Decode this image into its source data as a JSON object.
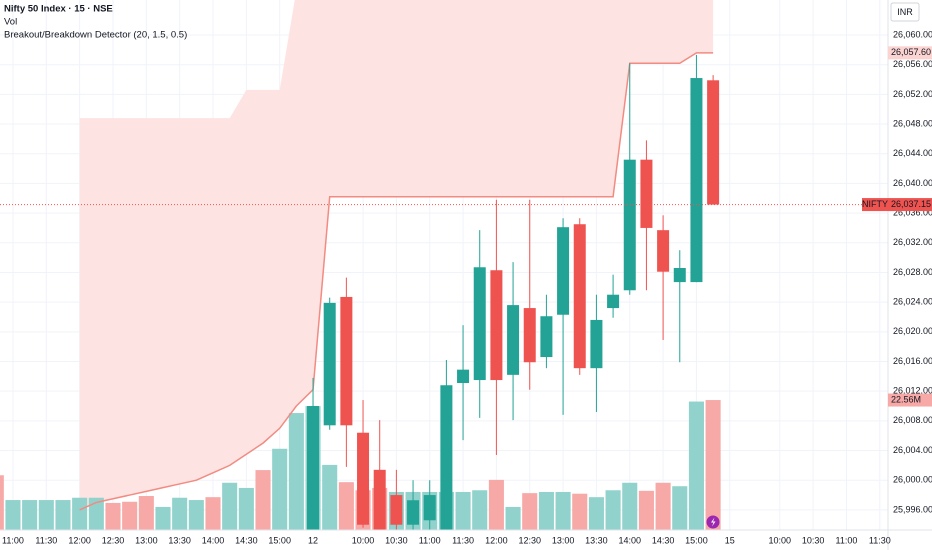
{
  "chart_data": {
    "type": "candlestick",
    "title": "Nifty 50 Index · 15 · NSE",
    "indicators": [
      "Vol",
      "Breakout/Breakdown Detector (20, 1.5, 0.5)"
    ],
    "currency": "INR",
    "categories": [
      null,
      "11:00",
      null,
      "11:30",
      null,
      "12:00",
      null,
      "12:30",
      null,
      "13:00",
      null,
      "13:30",
      null,
      "14:00",
      null,
      "14:30",
      null,
      "15:00",
      null,
      "12",
      null,
      null,
      "10:00",
      null,
      "10:30",
      null,
      "11:00",
      null,
      "11:30",
      null,
      "12:00",
      null,
      "12:30",
      null,
      "13:00",
      null,
      "13:30",
      null,
      "14:00",
      null,
      "14:30",
      null,
      "15:00",
      null,
      "15",
      null,
      null,
      "10:00",
      null,
      "10:30",
      null,
      "11:00",
      null,
      "11:30"
    ],
    "open": [
      null,
      null,
      null,
      null,
      null,
      null,
      null,
      null,
      null,
      null,
      null,
      null,
      null,
      null,
      null,
      null,
      null,
      null,
      null,
      25993.3,
      26007.4,
      26024.7,
      26006.4,
      26001.4,
      25998.0,
      25994.0,
      25994.6,
      25993.3,
      26013.1,
      26013.5,
      26028.3,
      26014.2,
      26023.2,
      26016.6,
      26022.3,
      26034.5,
      26015.1,
      26023.2,
      26025.6,
      26043.2,
      26033.7,
      26026.7,
      26026.7,
      26053.9,
      null,
      null,
      null,
      null,
      null,
      null,
      null,
      null,
      null,
      null
    ],
    "high": [
      null,
      null,
      null,
      null,
      null,
      null,
      null,
      null,
      null,
      null,
      null,
      null,
      null,
      null,
      null,
      null,
      null,
      null,
      null,
      26013.8,
      26024.6,
      26027.3,
      26010.8,
      26008.1,
      26001.4,
      26000.0,
      26000.0,
      26016.2,
      26020.9,
      26033.7,
      26037.8,
      26029.4,
      26037.8,
      26025.0,
      26035.3,
      26035.3,
      26025.0,
      26027.7,
      26056.2,
      26045.8,
      26035.7,
      26031.0,
      26057.3,
      26054.6,
      null,
      null,
      null,
      null,
      null,
      null,
      null,
      null,
      null,
      null
    ],
    "low": [
      null,
      null,
      null,
      null,
      null,
      null,
      null,
      null,
      null,
      null,
      null,
      null,
      null,
      null,
      null,
      null,
      null,
      null,
      null,
      25993.3,
      26006.8,
      26001.8,
      25993.6,
      25992.6,
      25993.3,
      25993.3,
      25993.3,
      25993.3,
      26005.4,
      26008.4,
      26003.4,
      26008.1,
      26012.2,
      26015.1,
      26008.8,
      26014.2,
      26009.2,
      26021.9,
      26025.0,
      26025.6,
      26018.9,
      26015.9,
      26026.7,
      26037.15,
      null,
      null,
      null,
      null,
      null,
      null,
      null,
      null,
      null,
      null
    ],
    "close": [
      null,
      null,
      null,
      null,
      null,
      null,
      null,
      null,
      null,
      null,
      null,
      null,
      null,
      null,
      null,
      null,
      null,
      null,
      null,
      26010.0,
      26023.9,
      26007.4,
      25994.0,
      25993.3,
      25994.0,
      25997.3,
      25998.0,
      26012.8,
      26014.9,
      26028.7,
      26013.5,
      26023.6,
      26015.9,
      26022.1,
      26034.1,
      26015.1,
      26021.6,
      26025.0,
      26043.2,
      26034.0,
      26028.1,
      26028.6,
      26054.2,
      26037.15,
      null,
      null,
      null,
      null,
      null,
      null,
      null,
      null,
      null,
      null
    ],
    "up_color": "#22a395",
    "down_color": "#ef5350",
    "volume": {
      "values": [
        9.5,
        5.2,
        5.2,
        5.2,
        5.2,
        5.6,
        5.6,
        4.7,
        4.9,
        5.9,
        4.0,
        5.6,
        5.2,
        5.7,
        8.2,
        7.3,
        10.4,
        14.1,
        20.3,
        21.5,
        11.3,
        8.3,
        6.9,
        7.3,
        6.6,
        6.6,
        6.6,
        6.6,
        6.6,
        6.9,
        8.7,
        4.0,
        6.4,
        6.6,
        6.6,
        6.3,
        5.7,
        6.9,
        8.2,
        6.8,
        8.2,
        7.6,
        22.3,
        22.56,
        null,
        null,
        null,
        null,
        null,
        null,
        null,
        null,
        null,
        null
      ],
      "colors": [
        "#f7a9a7",
        "#92d2cc",
        "#92d2cc",
        "#92d2cc",
        "#92d2cc",
        "#92d2cc",
        "#92d2cc",
        "#f7a9a7",
        "#f7a9a7",
        "#f7a9a7",
        "#92d2cc",
        "#92d2cc",
        "#92d2cc",
        "#f7a9a7",
        "#92d2cc",
        "#92d2cc",
        "#f7a9a7",
        "#92d2cc",
        "#92d2cc",
        "#92d2cc",
        "#92d2cc",
        "#f7a9a7",
        "#f7a9a7",
        "#f7a9a7",
        "#92d2cc",
        "#92d2cc",
        "#92d2cc",
        "#92d2cc",
        "#92d2cc",
        "#92d2cc",
        "#f7a9a7",
        "#92d2cc",
        "#f7a9a7",
        "#92d2cc",
        "#92d2cc",
        "#f7a9a7",
        "#92d2cc",
        "#92d2cc",
        "#92d2cc",
        "#f7a9a7",
        "#f7a9a7",
        "#92d2cc",
        "#92d2cc",
        "#f7a9a7",
        null,
        null,
        null,
        null,
        null,
        null,
        null,
        null,
        null,
        null
      ],
      "lim": [
        0,
        92
      ]
    },
    "level": {
      "color": "#f28b82",
      "values": [
        null,
        null,
        null,
        null,
        null,
        25996,
        25997,
        25997.5,
        25998,
        25998.5,
        25999,
        25999.5,
        26000,
        26001,
        26002,
        26003.5,
        26005,
        26007,
        26010,
        26012.2,
        26038.2,
        26038.2,
        26038.2,
        26038.2,
        26038.2,
        26038.2,
        26038.2,
        26038.2,
        26038.2,
        26038.2,
        26038.2,
        26038.2,
        26038.2,
        26038.2,
        26038.2,
        26038.2,
        26038.2,
        26038.2,
        26056.2,
        26056.2,
        26056.2,
        26056.2,
        26057.6,
        26057.6,
        null,
        null,
        null,
        null,
        null,
        null,
        null,
        null,
        null,
        null
      ]
    },
    "band_top": {
      "color": "#fde4e2",
      "values": [
        null,
        null,
        null,
        null,
        null,
        26048.8,
        26048.8,
        26048.8,
        26048.8,
        26048.8,
        26048.8,
        26048.8,
        26048.8,
        26048.8,
        26048.8,
        26052.6,
        26052.6,
        26052.6,
        26066,
        26066,
        26066,
        26066,
        26066,
        26066,
        26066,
        26066,
        26066,
        26066,
        26066,
        26066,
        26066,
        26066,
        26066,
        26066,
        26066,
        26066,
        26066,
        26066,
        26066,
        26066,
        26066,
        26066,
        26066,
        26066,
        null,
        null,
        null,
        null,
        null,
        null,
        null,
        null,
        null,
        null
      ]
    },
    "price_labels": [
      {
        "name": "NIFTY",
        "value": 26037.15,
        "label": "26,037.15"
      },
      {
        "value": 26057.6,
        "label": "26,057.60"
      },
      {
        "value": 22.56,
        "label": "22.56M",
        "axis": "volume"
      }
    ],
    "ylim": [
      25993.29,
      26064.72
    ],
    "yticks": [
      {
        "value": 26060,
        "label": "26,060.00"
      },
      {
        "value": 26056,
        "label": "26,056.00"
      },
      {
        "value": 26052,
        "label": "26,052.00"
      },
      {
        "value": 26048,
        "label": "26,048.00"
      },
      {
        "value": 26044,
        "label": "26,044.00"
      },
      {
        "value": 26040,
        "label": "26,040.00"
      },
      {
        "value": 26036,
        "label": "26,036.00"
      },
      {
        "value": 26032,
        "label": "26,032.00"
      },
      {
        "value": 26028,
        "label": "26,028.00"
      },
      {
        "value": 26024,
        "label": "26,024.00"
      },
      {
        "value": 26020,
        "label": "26,020.00"
      },
      {
        "value": 26016,
        "label": "26,016.00"
      },
      {
        "value": 26012,
        "label": "26,012.00"
      },
      {
        "value": 26008,
        "label": "26,008.00"
      },
      {
        "value": 26004,
        "label": "26,004.00"
      },
      {
        "value": 26000,
        "label": "26,000.00"
      },
      {
        "value": 25996,
        "label": "25,996.00"
      }
    ],
    "grid": true
  }
}
